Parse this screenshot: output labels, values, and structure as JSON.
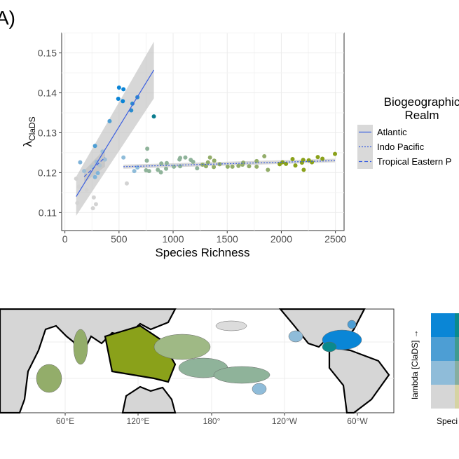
{
  "panel_label": "A)",
  "chart_data": {
    "type": "scatter",
    "title": "",
    "xlabel": "Species Richness",
    "ylabel_main": "λ",
    "ylabel_sub": "ClaDS",
    "xlim": [
      -30,
      2580
    ],
    "ylim": [
      0.1055,
      0.155
    ],
    "xticks": [
      0,
      500,
      1000,
      1500,
      2000,
      2500
    ],
    "yticks": [
      0.11,
      0.12,
      0.13,
      0.14,
      0.15
    ],
    "ytick_labels": [
      "0.11",
      "0.12",
      "0.13",
      "0.14",
      "0.15"
    ],
    "grid": true,
    "legend": {
      "title_line1": "Biogeographic",
      "title_line2": "Realm",
      "placement": "right",
      "entries": [
        {
          "name": "Atlantic",
          "linestyle": "solid"
        },
        {
          "name": "Indo Pacific",
          "linestyle": "dotted"
        },
        {
          "name": "Tropical Eastern P",
          "linestyle": "dashed"
        }
      ]
    },
    "line_color": "#3b5fe0",
    "band_color": "#bdbdbd",
    "fits": [
      {
        "name": "Atlantic",
        "linestyle": "solid",
        "x": [
          104,
          822
        ],
        "y": [
          0.114,
          0.1457
        ],
        "band_low": [
          0.1092,
          0.1386
        ],
        "band_high": [
          0.119,
          0.1528
        ]
      },
      {
        "name": "Indo Pacific",
        "linestyle": "dotted",
        "x": [
          541,
          2496
        ],
        "y": [
          0.1215,
          0.123
        ],
        "band_low": [
          0.121,
          0.1226
        ],
        "band_high": [
          0.122,
          0.1235
        ]
      },
      {
        "name": "Tropical Eastern P",
        "linestyle": "dashed",
        "x": [
          178,
          370
        ],
        "y": [
          0.119,
          0.1238
        ],
        "band_low": [
          0.1175,
          0.1215
        ],
        "band_high": [
          0.1205,
          0.126
        ]
      }
    ],
    "points": [
      {
        "x": 500,
        "y": 0.1413,
        "color": "#0a84d6"
      },
      {
        "x": 541,
        "y": 0.1409,
        "color": "#0a84d6"
      },
      {
        "x": 493,
        "y": 0.1385,
        "color": "#0a84d6"
      },
      {
        "x": 535,
        "y": 0.1379,
        "color": "#0a84d6"
      },
      {
        "x": 624,
        "y": 0.1373,
        "color": "#2a8ccf"
      },
      {
        "x": 613,
        "y": 0.1356,
        "color": "#2a8ccf"
      },
      {
        "x": 670,
        "y": 0.1389,
        "color": "#2a8ccf"
      },
      {
        "x": 822,
        "y": 0.1341,
        "color": "#0a7c8e"
      },
      {
        "x": 413,
        "y": 0.1329,
        "color": "#4d9ed4"
      },
      {
        "x": 278,
        "y": 0.1267,
        "color": "#4d9ed4"
      },
      {
        "x": 141,
        "y": 0.1226,
        "color": "#7fb3d9"
      },
      {
        "x": 541,
        "y": 0.1238,
        "color": "#8fbcd9"
      },
      {
        "x": 641,
        "y": 0.1204,
        "color": "#8fbcd9"
      },
      {
        "x": 670,
        "y": 0.1213,
        "color": "#8fbcd9"
      },
      {
        "x": 304,
        "y": 0.1199,
        "color": "#7fb3d9"
      },
      {
        "x": 278,
        "y": 0.1189,
        "color": "#7fb3d9"
      },
      {
        "x": 178,
        "y": 0.1204,
        "color": "#9fbfd6"
      },
      {
        "x": 293,
        "y": 0.1227,
        "color": "#9fbfd6"
      },
      {
        "x": 348,
        "y": 0.1253,
        "color": "#9fbfd6"
      },
      {
        "x": 370,
        "y": 0.1233,
        "color": "#9fbfd6"
      },
      {
        "x": 322,
        "y": 0.1218,
        "color": "#b0c4cf"
      },
      {
        "x": 250,
        "y": 0.1215,
        "color": "#b0c4cf"
      },
      {
        "x": 104,
        "y": 0.1185,
        "color": "#d3d3d3"
      },
      {
        "x": 130,
        "y": 0.1165,
        "color": "#d3d3d3"
      },
      {
        "x": 200,
        "y": 0.1157,
        "color": "#d3d3d3"
      },
      {
        "x": 115,
        "y": 0.1124,
        "color": "#d3d3d3"
      },
      {
        "x": 267,
        "y": 0.1138,
        "color": "#d3d3d3"
      },
      {
        "x": 287,
        "y": 0.1121,
        "color": "#d3d3d3"
      },
      {
        "x": 259,
        "y": 0.1111,
        "color": "#d3d3d3"
      },
      {
        "x": 572,
        "y": 0.1173,
        "color": "#d3d3d3"
      },
      {
        "x": 761,
        "y": 0.126,
        "color": "#8fb39a"
      },
      {
        "x": 757,
        "y": 0.123,
        "color": "#8fb39a"
      },
      {
        "x": 750,
        "y": 0.1206,
        "color": "#8fb39a"
      },
      {
        "x": 778,
        "y": 0.1204,
        "color": "#8fb39a"
      },
      {
        "x": 859,
        "y": 0.1207,
        "color": "#8fb39a"
      },
      {
        "x": 887,
        "y": 0.1201,
        "color": "#8fb39a"
      },
      {
        "x": 891,
        "y": 0.1223,
        "color": "#8fb39a"
      },
      {
        "x": 935,
        "y": 0.121,
        "color": "#8fb39a"
      },
      {
        "x": 941,
        "y": 0.1224,
        "color": "#8fb39a"
      },
      {
        "x": 1007,
        "y": 0.1215,
        "color": "#8fb39a"
      },
      {
        "x": 1059,
        "y": 0.1233,
        "color": "#8fb39a"
      },
      {
        "x": 1065,
        "y": 0.1237,
        "color": "#8fb39a"
      },
      {
        "x": 1113,
        "y": 0.1238,
        "color": "#8fb39a"
      },
      {
        "x": 1065,
        "y": 0.1216,
        "color": "#8fb39a"
      },
      {
        "x": 1163,
        "y": 0.1232,
        "color": "#8fb39a"
      },
      {
        "x": 1185,
        "y": 0.1227,
        "color": "#8fb39a"
      },
      {
        "x": 1222,
        "y": 0.1211,
        "color": "#8fb39a"
      },
      {
        "x": 1272,
        "y": 0.122,
        "color": "#93ad6a"
      },
      {
        "x": 1304,
        "y": 0.1216,
        "color": "#93ad6a"
      },
      {
        "x": 1322,
        "y": 0.1226,
        "color": "#93ad6a"
      },
      {
        "x": 1341,
        "y": 0.1238,
        "color": "#93ad6a"
      },
      {
        "x": 1380,
        "y": 0.123,
        "color": "#93ad6a"
      },
      {
        "x": 1376,
        "y": 0.1214,
        "color": "#93ad6a"
      },
      {
        "x": 1430,
        "y": 0.1221,
        "color": "#93ad6a"
      },
      {
        "x": 1504,
        "y": 0.1215,
        "color": "#93ad6a"
      },
      {
        "x": 1548,
        "y": 0.1215,
        "color": "#93ad6a"
      },
      {
        "x": 1604,
        "y": 0.1217,
        "color": "#93ad6a"
      },
      {
        "x": 1648,
        "y": 0.1225,
        "color": "#93ad6a"
      },
      {
        "x": 1641,
        "y": 0.122,
        "color": "#93ad6a"
      },
      {
        "x": 1702,
        "y": 0.1216,
        "color": "#93ad6a"
      },
      {
        "x": 1772,
        "y": 0.1229,
        "color": "#93ad6a"
      },
      {
        "x": 1772,
        "y": 0.1215,
        "color": "#93ad6a"
      },
      {
        "x": 1843,
        "y": 0.1241,
        "color": "#93ad6a"
      },
      {
        "x": 1876,
        "y": 0.1207,
        "color": "#93ad6a"
      },
      {
        "x": 1985,
        "y": 0.1221,
        "color": "#8aa11a"
      },
      {
        "x": 2011,
        "y": 0.1226,
        "color": "#8aa11a"
      },
      {
        "x": 2043,
        "y": 0.1222,
        "color": "#8aa11a"
      },
      {
        "x": 2104,
        "y": 0.1234,
        "color": "#8aa11a"
      },
      {
        "x": 2130,
        "y": 0.1218,
        "color": "#8aa11a"
      },
      {
        "x": 2202,
        "y": 0.1232,
        "color": "#8aa11a"
      },
      {
        "x": 2207,
        "y": 0.1207,
        "color": "#8aa11a"
      },
      {
        "x": 2191,
        "y": 0.1225,
        "color": "#8aa11a"
      },
      {
        "x": 2254,
        "y": 0.1231,
        "color": "#8aa11a"
      },
      {
        "x": 2283,
        "y": 0.1226,
        "color": "#8aa11a"
      },
      {
        "x": 2337,
        "y": 0.1239,
        "color": "#8aa11a"
      },
      {
        "x": 2380,
        "y": 0.1235,
        "color": "#8aa11a"
      },
      {
        "x": 2496,
        "y": 0.1247,
        "color": "#8aa11a"
      }
    ]
  },
  "map": {
    "lon_ticks": [
      "60°E",
      "120°E",
      "180°",
      "120°W",
      "60°W"
    ],
    "land_color": "#d6d6d6",
    "coast_color": "#000000"
  },
  "bivariate_legend": {
    "ylabel": "lambda [ClaDS] →",
    "xlabel": "Speci",
    "rows": [
      [
        "#0a86d6",
        "#0a8a8c"
      ],
      [
        "#4d9ed4",
        "#3f9a90"
      ],
      [
        "#8fbcd9",
        "#86aea0"
      ],
      [
        "#d6d6d6",
        "#d6d3a3"
      ]
    ]
  }
}
